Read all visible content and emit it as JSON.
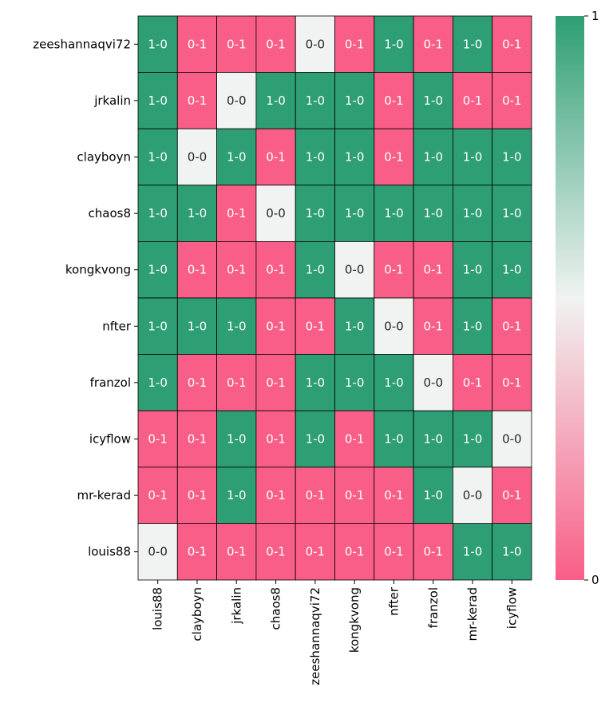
{
  "chart_data": {
    "type": "heatmap",
    "title": "",
    "xlabel": "",
    "ylabel": "",
    "rows": [
      "zeeshannaqvi72",
      "jrkalin",
      "clayboyn",
      "chaos8",
      "kongkvong",
      "nfter",
      "franzol",
      "icyflow",
      "mr-kerad",
      "louis88"
    ],
    "columns": [
      "louis88",
      "clayboyn",
      "jrkalin",
      "chaos8",
      "zeeshannaqvi72",
      "kongkvong",
      "nfter",
      "franzol",
      "mr-kerad",
      "icyflow"
    ],
    "cells": [
      [
        "1-0",
        "0-1",
        "0-1",
        "0-1",
        "0-0",
        "0-1",
        "1-0",
        "0-1",
        "1-0",
        "0-1"
      ],
      [
        "1-0",
        "0-1",
        "0-0",
        "1-0",
        "1-0",
        "1-0",
        "0-1",
        "1-0",
        "0-1",
        "0-1"
      ],
      [
        "1-0",
        "0-0",
        "1-0",
        "0-1",
        "1-0",
        "1-0",
        "0-1",
        "1-0",
        "1-0",
        "1-0"
      ],
      [
        "1-0",
        "1-0",
        "0-1",
        "0-0",
        "1-0",
        "1-0",
        "1-0",
        "1-0",
        "1-0",
        "1-0"
      ],
      [
        "1-0",
        "0-1",
        "0-1",
        "0-1",
        "1-0",
        "0-0",
        "0-1",
        "0-1",
        "1-0",
        "1-0"
      ],
      [
        "1-0",
        "1-0",
        "1-0",
        "0-1",
        "0-1",
        "1-0",
        "0-0",
        "0-1",
        "1-0",
        "0-1"
      ],
      [
        "1-0",
        "0-1",
        "0-1",
        "0-1",
        "1-0",
        "1-0",
        "1-0",
        "0-0",
        "0-1",
        "0-1"
      ],
      [
        "0-1",
        "0-1",
        "1-0",
        "0-1",
        "1-0",
        "0-1",
        "1-0",
        "1-0",
        "1-0",
        "0-0"
      ],
      [
        "0-1",
        "0-1",
        "1-0",
        "0-1",
        "0-1",
        "0-1",
        "0-1",
        "1-0",
        "0-0",
        "0-1"
      ],
      [
        "0-0",
        "0-1",
        "0-1",
        "0-1",
        "0-1",
        "0-1",
        "0-1",
        "0-1",
        "1-0",
        "1-0"
      ]
    ],
    "cell_values": {
      "1-0": 1,
      "0-1": 0,
      "0-0": 0.5
    },
    "colorbar": {
      "min": 0,
      "max": 1,
      "ticks": [
        "0",
        "1"
      ]
    },
    "colors": {
      "high": "#2e9e74",
      "mid": "#f0f3f1",
      "low": "#f85e87",
      "text_light": "#ffffff",
      "text_dark": "#262626",
      "grid": "#000000"
    }
  }
}
